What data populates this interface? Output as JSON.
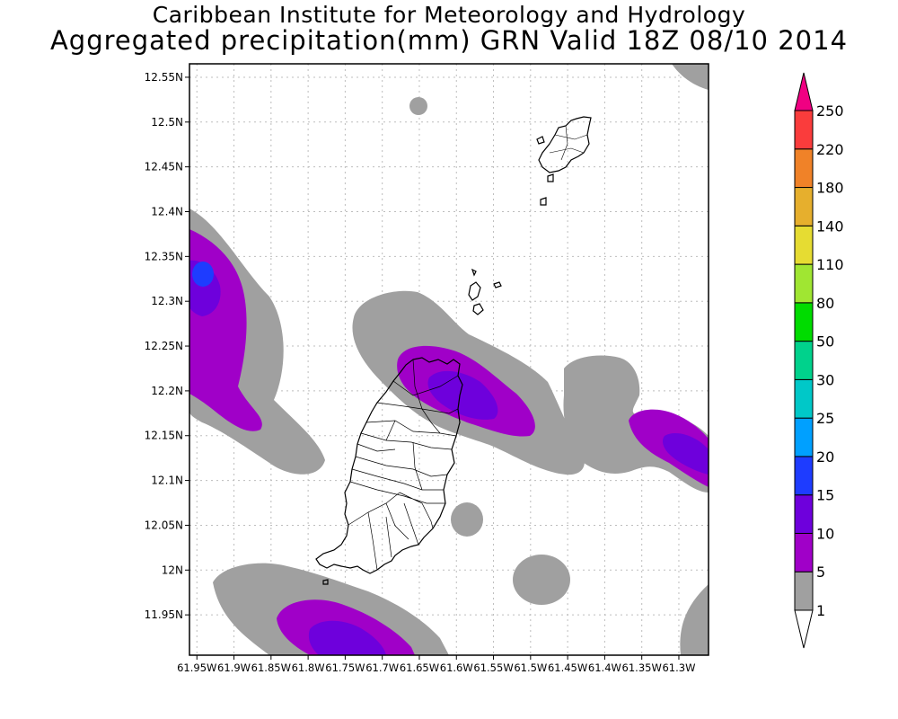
{
  "title_line1": "Caribbean Institute for Meteorology and Hydrology",
  "title_line2": "Aggregated precipitation(mm) GRN Valid 18Z 08/10 2014",
  "map": {
    "lon_range": [
      -61.96,
      -61.26
    ],
    "lat_range": [
      11.905,
      12.565
    ],
    "grid": true,
    "lat_ticks": [
      {
        "value": 12.55,
        "label": "12.55N"
      },
      {
        "value": 12.5,
        "label": "12.5N"
      },
      {
        "value": 12.45,
        "label": "12.45N"
      },
      {
        "value": 12.4,
        "label": "12.4N"
      },
      {
        "value": 12.35,
        "label": "12.35N"
      },
      {
        "value": 12.3,
        "label": "12.3N"
      },
      {
        "value": 12.25,
        "label": "12.25N"
      },
      {
        "value": 12.2,
        "label": "12.2N"
      },
      {
        "value": 12.15,
        "label": "12.15N"
      },
      {
        "value": 12.1,
        "label": "12.1N"
      },
      {
        "value": 12.05,
        "label": "12.05N"
      },
      {
        "value": 12.0,
        "label": "12N"
      },
      {
        "value": 11.95,
        "label": "11.95N"
      }
    ],
    "lon_ticks": [
      {
        "value": -61.95,
        "label": "61.95W"
      },
      {
        "value": -61.9,
        "label": "61.9W"
      },
      {
        "value": -61.85,
        "label": "61.85W"
      },
      {
        "value": -61.8,
        "label": "61.8W"
      },
      {
        "value": -61.75,
        "label": "61.75W"
      },
      {
        "value": -61.7,
        "label": "61.7W"
      },
      {
        "value": -61.65,
        "label": "61.65W"
      },
      {
        "value": -61.6,
        "label": "61.6W"
      },
      {
        "value": -61.55,
        "label": "61.55W"
      },
      {
        "value": -61.5,
        "label": "61.5W"
      },
      {
        "value": -61.45,
        "label": "61.45W"
      },
      {
        "value": -61.4,
        "label": "61.4W"
      },
      {
        "value": -61.35,
        "label": "61.35W"
      },
      {
        "value": -61.3,
        "label": "61.3W"
      }
    ]
  },
  "legend": {
    "unit": "mm",
    "levels": [
      {
        "label": "1",
        "color": "#ffffff"
      },
      {
        "label": "5",
        "color": "#a0a0a0"
      },
      {
        "label": "10",
        "color": "#a000c8"
      },
      {
        "label": "15",
        "color": "#6e00dc"
      },
      {
        "label": "20",
        "color": "#1e3cff"
      },
      {
        "label": "25",
        "color": "#00a0ff"
      },
      {
        "label": "30",
        "color": "#00c8c8"
      },
      {
        "label": "50",
        "color": "#00d28c"
      },
      {
        "label": "80",
        "color": "#00dc00"
      },
      {
        "label": "110",
        "color": "#a0e632"
      },
      {
        "label": "140",
        "color": "#e6dc32"
      },
      {
        "label": "180",
        "color": "#e6af2d"
      },
      {
        "label": "220",
        "color": "#f08228"
      },
      {
        "label": "250",
        "color": "#fa3c3c"
      }
    ],
    "top_arrow_color": "#f00082",
    "bottom_arrow_color": "#ffffff"
  }
}
